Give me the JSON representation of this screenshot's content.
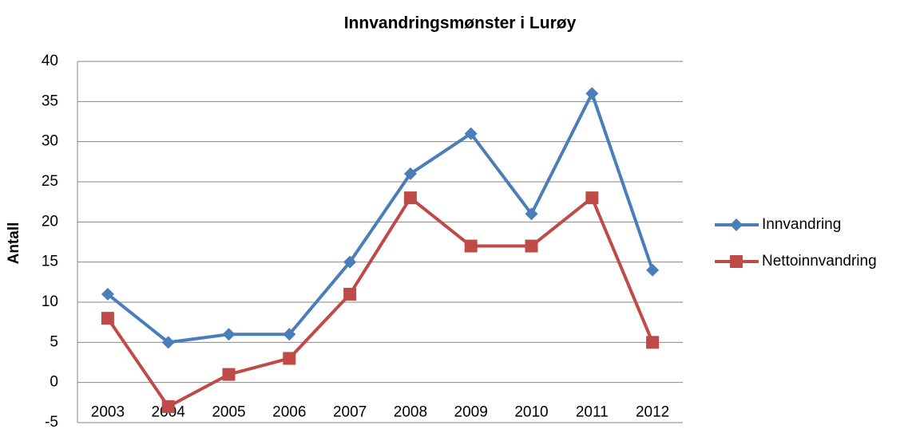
{
  "chart_data": {
    "type": "line",
    "title": "Innvandringsmønster i Lurøy",
    "y_label": "Antall",
    "categories": [
      "2003",
      "2004",
      "2005",
      "2006",
      "2007",
      "2008",
      "2009",
      "2010",
      "2011",
      "2012"
    ],
    "series": [
      {
        "name": "Innvandring",
        "color": "#4a7ebb",
        "marker": "diamond",
        "values": [
          11,
          5,
          6,
          6,
          15,
          26,
          31,
          21,
          36,
          14
        ]
      },
      {
        "name": "Nettoinnvandring",
        "color": "#be4b48",
        "marker": "square",
        "values": [
          8,
          -3,
          1,
          3,
          11,
          23,
          17,
          17,
          23,
          5
        ]
      }
    ],
    "ylim": [
      -5,
      40
    ],
    "yticks": [
      -5,
      0,
      5,
      10,
      15,
      20,
      25,
      30,
      35,
      40
    ],
    "grid": true,
    "legend": "right"
  }
}
